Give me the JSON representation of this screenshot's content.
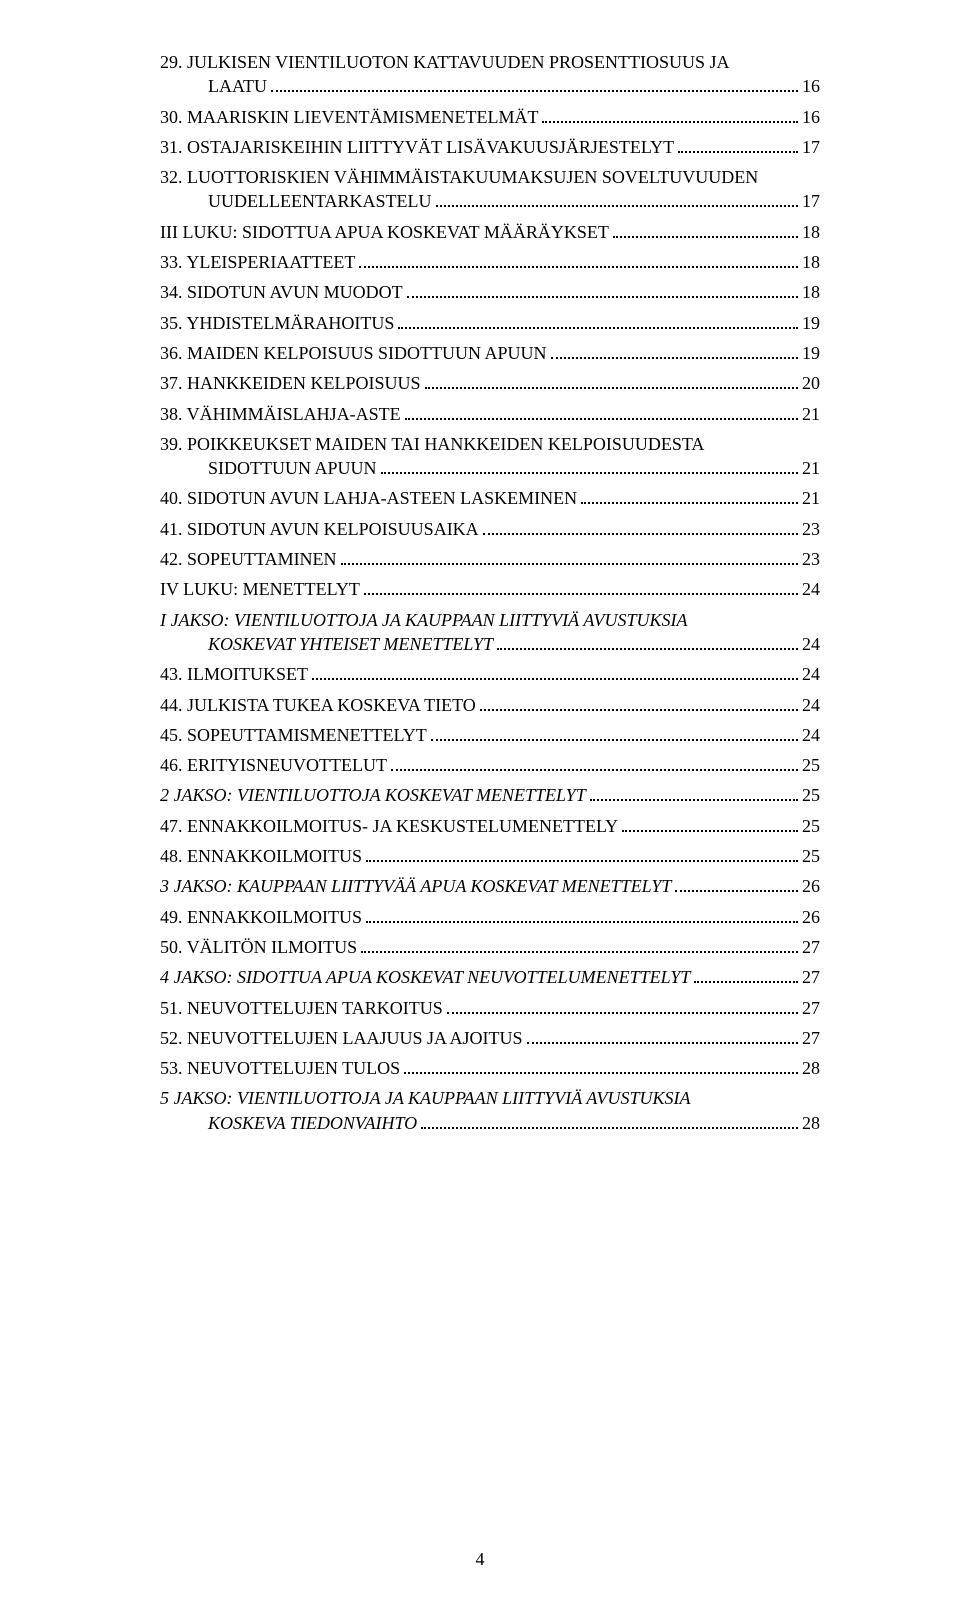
{
  "pageNumber": "4",
  "entries": [
    {
      "label": "29. JULKISEN VIENTILUOTON KATTAVUUDEN PROSENTTIOSUUS JA LAATU",
      "page": "16",
      "indent": 0,
      "italic": false,
      "wrap": true,
      "wrapAt": 55
    },
    {
      "label": "30. MAARISKIN LIEVENTÄMISMENETELMÄT",
      "page": "16",
      "indent": 0,
      "italic": false
    },
    {
      "label": "31. OSTAJARISKEIHIN LIITTYVÄT LISÄVAKUUSJÄRJESTELYT",
      "page": "17",
      "indent": 0,
      "italic": false
    },
    {
      "label": "32. LUOTTORISKIEN VÄHIMMÄISTAKUUMAKSUJEN SOVELTUVUUDEN UUDELLEENTARKASTELU",
      "page": "17",
      "indent": 0,
      "italic": false,
      "wrap": true,
      "wrapAt": 54
    },
    {
      "label": "III LUKU: SIDOTTUA APUA KOSKEVAT MÄÄRÄYKSET",
      "page": "18",
      "indent": 0,
      "italic": false
    },
    {
      "label": "33. YLEISPERIAATTEET",
      "page": "18",
      "indent": 0,
      "italic": false
    },
    {
      "label": "34. SIDOTUN AVUN MUODOT",
      "page": "18",
      "indent": 0,
      "italic": false
    },
    {
      "label": "35. YHDISTELMÄRAHOITUS",
      "page": "19",
      "indent": 0,
      "italic": false
    },
    {
      "label": "36. MAIDEN KELPOISUUS SIDOTTUUN APUUN",
      "page": "19",
      "indent": 0,
      "italic": false
    },
    {
      "label": "37. HANKKEIDEN KELPOISUUS",
      "page": "20",
      "indent": 0,
      "italic": false
    },
    {
      "label": "38. VÄHIMMÄISLAHJA-ASTE",
      "page": "21",
      "indent": 0,
      "italic": false
    },
    {
      "label": "39. POIKKEUKSET MAIDEN TAI HANKKEIDEN KELPOISUUDESTA SIDOTTUUN APUUN",
      "page": "21",
      "indent": 0,
      "italic": false,
      "wrap": true,
      "wrapAt": 54
    },
    {
      "label": "40. SIDOTUN AVUN LAHJA-ASTEEN LASKEMINEN",
      "page": "21",
      "indent": 0,
      "italic": false
    },
    {
      "label": "41. SIDOTUN AVUN KELPOISUUSAIKA",
      "page": "23",
      "indent": 0,
      "italic": false
    },
    {
      "label": "42. SOPEUTTAMINEN",
      "page": "23",
      "indent": 0,
      "italic": false
    },
    {
      "label": "IV LUKU: MENETTELYT",
      "page": "24",
      "indent": 0,
      "italic": false
    },
    {
      "label": "I JAKSO: VIENTILUOTTOJA JA KAUPPAAN LIITTYVIÄ AVUSTUKSIA KOSKEVAT YHTEISET MENETTELYT",
      "page": "24",
      "indent": 0,
      "italic": true,
      "wrap": true,
      "wrapAt": 56
    },
    {
      "label": "43. ILMOITUKSET",
      "page": "24",
      "indent": 0,
      "italic": false
    },
    {
      "label": "44. JULKISTA TUKEA KOSKEVA TIETO",
      "page": "24",
      "indent": 0,
      "italic": false
    },
    {
      "label": "45. SOPEUTTAMISMENETTELYT",
      "page": "24",
      "indent": 0,
      "italic": false
    },
    {
      "label": "46. ERITYISNEUVOTTELUT",
      "page": "25",
      "indent": 0,
      "italic": false
    },
    {
      "label": "2 JAKSO: VIENTILUOTTOJA KOSKEVAT MENETTELYT",
      "page": "25",
      "indent": 0,
      "italic": true
    },
    {
      "label": "47. ENNAKKOILMOITUS- JA KESKUSTELUMENETTELY",
      "page": "25",
      "indent": 0,
      "italic": false
    },
    {
      "label": "48. ENNAKKOILMOITUS",
      "page": "25",
      "indent": 0,
      "italic": false
    },
    {
      "label": "3 JAKSO: KAUPPAAN LIITTYVÄÄ APUA KOSKEVAT MENETTELYT",
      "page": "26",
      "indent": 0,
      "italic": true
    },
    {
      "label": "49. ENNAKKOILMOITUS",
      "page": "26",
      "indent": 0,
      "italic": false
    },
    {
      "label": "50. VÄLITÖN ILMOITUS",
      "page": "27",
      "indent": 0,
      "italic": false
    },
    {
      "label": "4 JAKSO: SIDOTTUA APUA KOSKEVAT NEUVOTTELUMENETTELYT",
      "page": "27",
      "indent": 0,
      "italic": true
    },
    {
      "label": "51. NEUVOTTELUJEN TARKOITUS",
      "page": "27",
      "indent": 0,
      "italic": false
    },
    {
      "label": "52. NEUVOTTELUJEN LAAJUUS JA AJOITUS",
      "page": "27",
      "indent": 0,
      "italic": false
    },
    {
      "label": "53. NEUVOTTELUJEN TULOS",
      "page": "28",
      "indent": 0,
      "italic": false
    },
    {
      "label": "5 JAKSO: VIENTILUOTTOJA JA KAUPPAAN LIITTYVIÄ AVUSTUKSIA KOSKEVA TIEDONVAIHTO",
      "page": "28",
      "indent": 0,
      "italic": true,
      "wrap": true,
      "wrapAt": 62
    }
  ]
}
